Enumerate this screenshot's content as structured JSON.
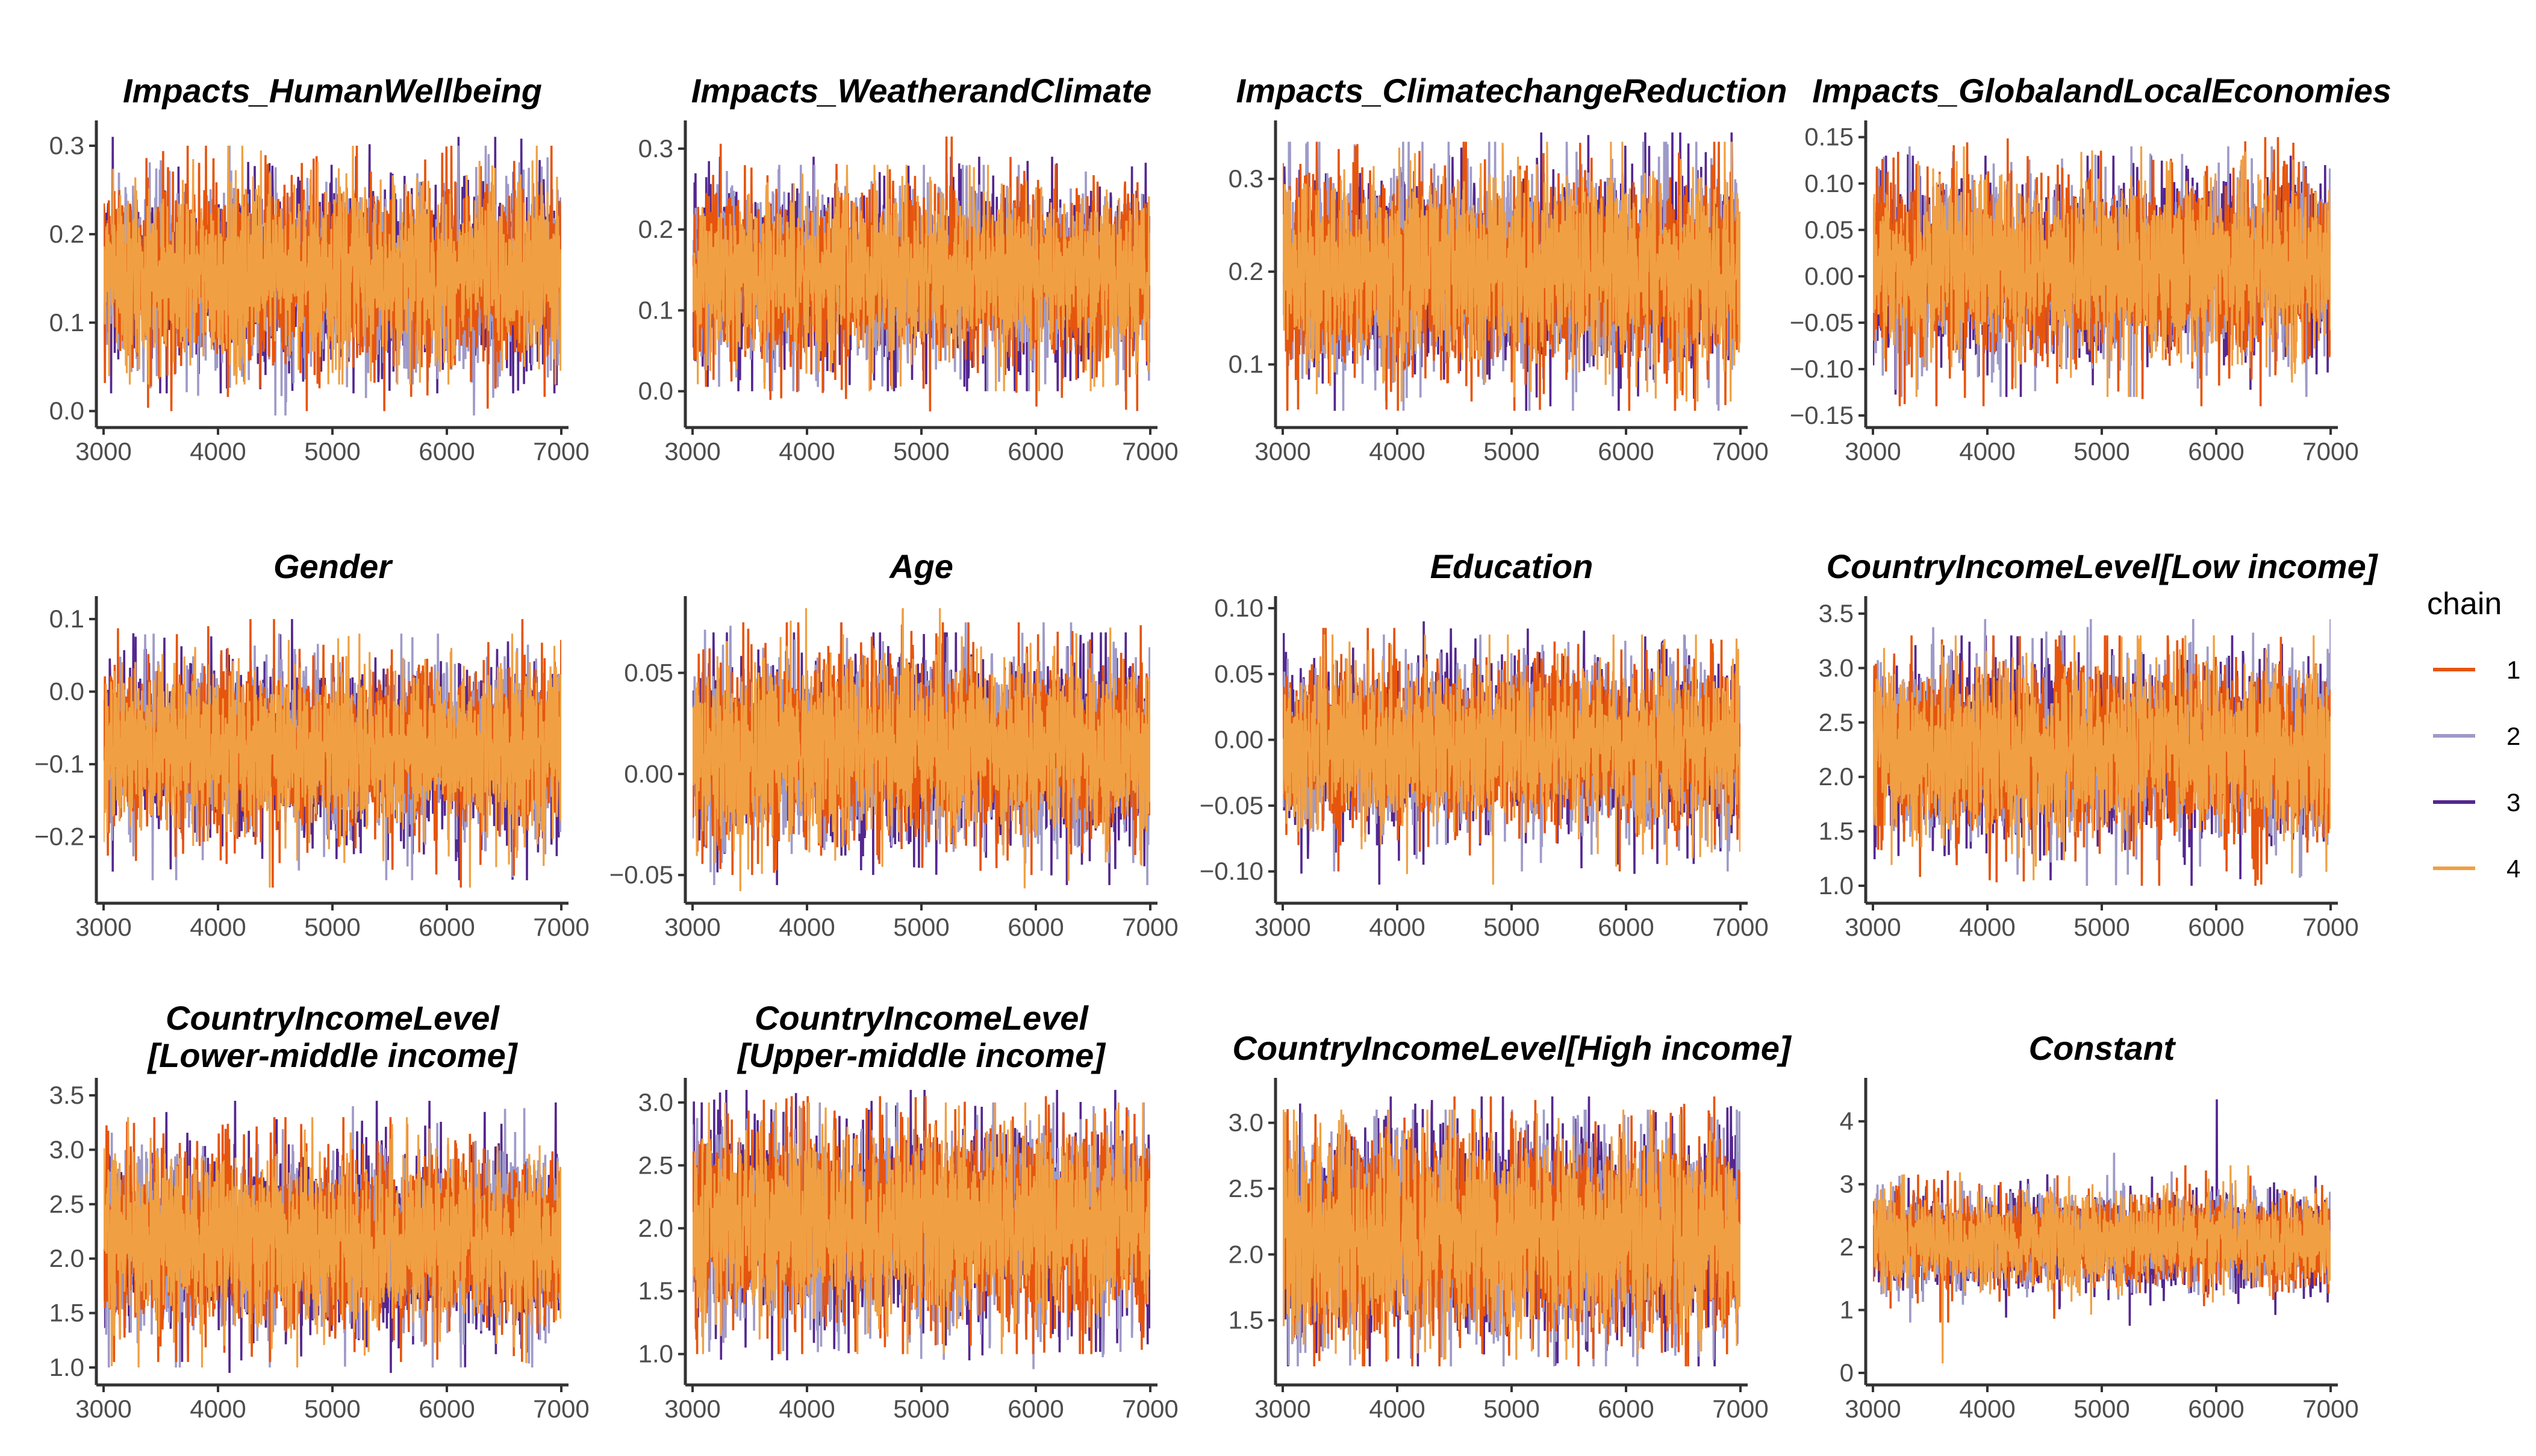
{
  "chart_data": {
    "type": "line",
    "description_series": "MCMC trace plots, 4 chains per parameter",
    "x_range": [
      3000,
      7000
    ],
    "x_ticks": [
      3000,
      4000,
      5000,
      6000,
      7000
    ],
    "legend": {
      "title": "chain",
      "entries": [
        {
          "label": "1",
          "color": "#E6550D"
        },
        {
          "label": "2",
          "color": "#9E9AC8"
        },
        {
          "label": "3",
          "color": "#54278F"
        },
        {
          "label": "4",
          "color": "#F0A043"
        }
      ]
    },
    "panels": [
      {
        "title": [
          "Impacts_HumanWellbeing"
        ],
        "y_range": [
          -0.005,
          0.315
        ],
        "y_ticks": [
          0.0,
          0.1,
          0.2,
          0.3
        ],
        "y_tick_labels": [
          "0.0",
          "0.1",
          "0.2",
          "0.3"
        ],
        "mean": 0.155,
        "sd": 0.05,
        "chain_min": [
          0.0,
          -0.005,
          0.02,
          0.03
        ],
        "chain_max": [
          0.3,
          0.3,
          0.31,
          0.3
        ]
      },
      {
        "title": [
          "Impacts_WeatherandClimate"
        ],
        "y_range": [
          -0.03,
          0.32
        ],
        "y_ticks": [
          0.0,
          0.1,
          0.2,
          0.3
        ],
        "y_tick_labels": [
          "0.0",
          "0.1",
          "0.2",
          "0.3"
        ],
        "mean": 0.145,
        "sd": 0.05,
        "chain_min": [
          -0.025,
          0.0,
          0.0,
          0.0
        ],
        "chain_max": [
          0.315,
          0.28,
          0.29,
          0.28
        ]
      },
      {
        "title": [
          "Impacts_ClimatechangeReduction"
        ],
        "y_range": [
          0.045,
          0.35
        ],
        "y_ticks": [
          0.1,
          0.2,
          0.3
        ],
        "y_tick_labels": [
          "0.1",
          "0.2",
          "0.3"
        ],
        "mean": 0.2,
        "sd": 0.05,
        "chain_min": [
          0.05,
          0.05,
          0.05,
          0.06
        ],
        "chain_max": [
          0.34,
          0.34,
          0.35,
          0.34
        ]
      },
      {
        "title": [
          "Impacts_GlobalandLocalEconomies"
        ],
        "y_range": [
          -0.15,
          0.155
        ],
        "y_ticks": [
          -0.15,
          -0.1,
          -0.05,
          0.0,
          0.05,
          0.1,
          0.15
        ],
        "y_tick_labels": [
          "−0.15",
          "−0.10",
          "−0.05",
          "0.00",
          "0.05",
          "0.10",
          "0.15"
        ],
        "mean": 0.01,
        "sd": 0.045,
        "chain_min": [
          -0.14,
          -0.13,
          -0.13,
          -0.13
        ],
        "chain_max": [
          0.15,
          0.14,
          0.13,
          0.14
        ]
      },
      {
        "title": [
          "Gender"
        ],
        "y_range": [
          -0.275,
          0.115
        ],
        "y_ticks": [
          -0.2,
          -0.1,
          0.0,
          0.1
        ],
        "y_tick_labels": [
          "−0.2",
          "−0.1",
          "0.0",
          "0.1"
        ],
        "mean": -0.08,
        "sd": 0.055,
        "chain_min": [
          -0.27,
          -0.26,
          -0.26,
          -0.27
        ],
        "chain_max": [
          0.1,
          0.08,
          0.1,
          0.08
        ]
      },
      {
        "title": [
          "Age"
        ],
        "y_range": [
          -0.058,
          0.082
        ],
        "y_ticks": [
          -0.05,
          0.0,
          0.05
        ],
        "y_tick_labels": [
          "−0.05",
          "0.00",
          "0.05"
        ],
        "mean": 0.012,
        "sd": 0.022,
        "chain_min": [
          -0.05,
          -0.055,
          -0.055,
          -0.058
        ],
        "chain_max": [
          0.075,
          0.075,
          0.07,
          0.082
        ]
      },
      {
        "title": [
          "Education"
        ],
        "y_range": [
          -0.115,
          0.1
        ],
        "y_ticks": [
          -0.1,
          -0.05,
          0.0,
          0.05,
          0.1
        ],
        "y_tick_labels": [
          "−0.10",
          "−0.05",
          "0.00",
          "0.05",
          "0.10"
        ],
        "mean": -0.005,
        "sd": 0.03,
        "chain_min": [
          -0.1,
          -0.1,
          -0.11,
          -0.11
        ],
        "chain_max": [
          0.085,
          0.08,
          0.09,
          0.08
        ]
      },
      {
        "title": [
          "CountryIncomeLevel[Low income]"
        ],
        "y_range": [
          0.95,
          3.55
        ],
        "y_ticks": [
          1.0,
          1.5,
          2.0,
          2.5,
          3.0,
          3.5
        ],
        "y_tick_labels": [
          "1.0",
          "1.5",
          "2.0",
          "2.5",
          "3.0",
          "3.5"
        ],
        "mean": 2.25,
        "sd": 0.38,
        "chain_min": [
          1.0,
          1.0,
          1.0,
          1.05
        ],
        "chain_max": [
          3.3,
          3.45,
          3.3,
          3.3
        ]
      },
      {
        "title": [
          "CountryIncomeLevel",
          "[Lower-middle income]"
        ],
        "y_range": [
          0.95,
          3.55
        ],
        "y_ticks": [
          1.0,
          1.5,
          2.0,
          2.5,
          3.0,
          3.5
        ],
        "y_tick_labels": [
          "1.0",
          "1.5",
          "2.0",
          "2.5",
          "3.0",
          "3.5"
        ],
        "mean": 2.15,
        "sd": 0.38,
        "chain_min": [
          1.05,
          1.0,
          0.95,
          1.0
        ],
        "chain_max": [
          3.3,
          3.4,
          3.45,
          3.3
        ]
      },
      {
        "title": [
          "CountryIncomeLevel",
          "[Upper-middle income]"
        ],
        "y_range": [
          0.85,
          3.1
        ],
        "y_ticks": [
          1.0,
          1.5,
          2.0,
          2.5,
          3.0
        ],
        "y_tick_labels": [
          "1.0",
          "1.5",
          "2.0",
          "2.5",
          "3.0"
        ],
        "mean": 2.05,
        "sd": 0.38,
        "chain_min": [
          1.0,
          0.88,
          0.95,
          1.0
        ],
        "chain_max": [
          3.05,
          3.0,
          3.1,
          3.0
        ]
      },
      {
        "title": [
          "CountryIncomeLevel[High income]"
        ],
        "y_range": [
          1.1,
          3.25
        ],
        "y_ticks": [
          1.5,
          2.0,
          2.5,
          3.0
        ],
        "y_tick_labels": [
          "1.5",
          "2.0",
          "2.5",
          "3.0"
        ],
        "mean": 2.15,
        "sd": 0.37,
        "chain_min": [
          1.15,
          1.15,
          1.15,
          1.2
        ],
        "chain_max": [
          3.2,
          3.1,
          3.2,
          3.1
        ]
      },
      {
        "title": [
          "Constant"
        ],
        "y_range": [
          0.0,
          4.5
        ],
        "y_ticks": [
          0,
          1,
          2,
          3,
          4
        ],
        "y_tick_labels": [
          "0",
          "1",
          "2",
          "3",
          "4"
        ],
        "mean": 2.1,
        "sd": 0.35,
        "chain_min": [
          0.8,
          0.8,
          0.75,
          0.15
        ],
        "chain_max": [
          3.3,
          3.5,
          4.35,
          3.3
        ]
      }
    ]
  }
}
